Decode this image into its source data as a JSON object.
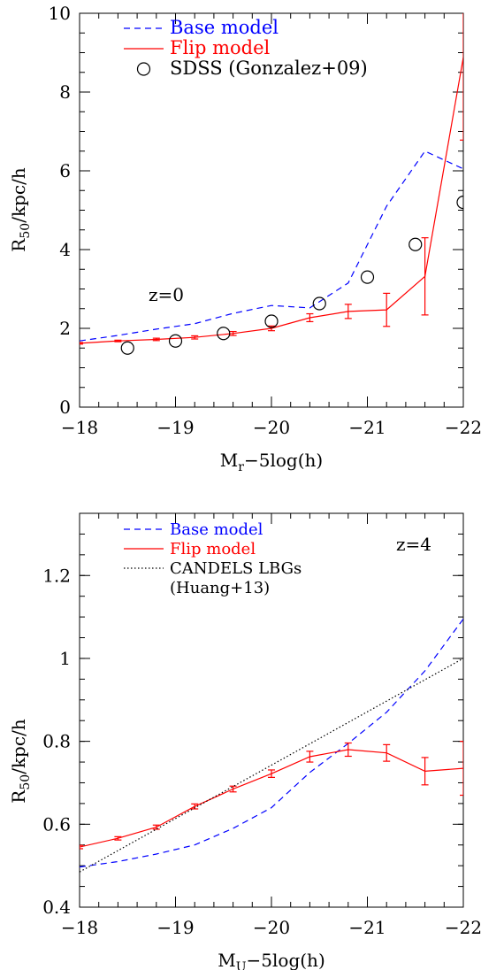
{
  "chart_data": [
    {
      "type": "line",
      "xlabel": "M",
      "xlabel_sub": "r",
      "xlabel_rest": "−5log(h)",
      "ylabel": "R",
      "ylabel_sub": "50",
      "ylabel_rest": "/kpc/h",
      "xlim": [
        -18,
        -22
      ],
      "ylim": [
        0,
        10
      ],
      "xticks": [
        -18,
        -19,
        -20,
        -21,
        -22
      ],
      "xtick_labels": [
        "−18",
        "−19",
        "−20",
        "−21",
        "−22"
      ],
      "yticks": [
        0,
        2,
        4,
        6,
        8,
        10
      ],
      "ytick_labels": [
        "0",
        "2",
        "4",
        "6",
        "8",
        "10"
      ],
      "annotation": "z=0",
      "legend_position": "top-left",
      "series": [
        {
          "name": "Base model",
          "style": "dashed",
          "color": "#0000ff",
          "x": [
            -18,
            -18.4,
            -18.8,
            -19.2,
            -19.6,
            -20,
            -20.4,
            -20.8,
            -21.2,
            -21.6,
            -22
          ],
          "y": [
            1.68,
            1.82,
            1.98,
            2.12,
            2.38,
            2.58,
            2.52,
            3.15,
            5.1,
            6.5,
            6.05
          ]
        },
        {
          "name": "Flip model",
          "style": "solid",
          "color": "#ff0000",
          "x": [
            -18,
            -18.4,
            -18.8,
            -19.2,
            -19.6,
            -20,
            -20.4,
            -20.8,
            -21.2,
            -21.6,
            -22
          ],
          "y": [
            1.62,
            1.68,
            1.72,
            1.77,
            1.87,
            2.0,
            2.27,
            2.43,
            2.47,
            3.32,
            8.88
          ],
          "err": [
            0.02,
            0.02,
            0.03,
            0.04,
            0.05,
            0.06,
            0.1,
            0.18,
            0.42,
            0.98,
            2.1
          ]
        },
        {
          "name": "SDSS (Gonzalez+09)",
          "style": "markers",
          "color": "#000000",
          "x": [
            -18.5,
            -19,
            -19.5,
            -20,
            -20.5,
            -21,
            -21.5,
            -22
          ],
          "y": [
            1.5,
            1.68,
            1.87,
            2.18,
            2.63,
            3.3,
            4.13,
            5.2
          ]
        }
      ]
    },
    {
      "type": "line",
      "xlabel": "M",
      "xlabel_sub": "U",
      "xlabel_rest": "−5log(h)",
      "ylabel": "R",
      "ylabel_sub": "50",
      "ylabel_rest": "/kpc/h",
      "xlim": [
        -18,
        -22
      ],
      "ylim": [
        0.4,
        1.35
      ],
      "xticks": [
        -18,
        -19,
        -20,
        -21,
        -22
      ],
      "xtick_labels": [
        "−18",
        "−19",
        "−20",
        "−21",
        "−22"
      ],
      "yticks": [
        0.4,
        0.6,
        0.8,
        1,
        1.2
      ],
      "ytick_labels": [
        "0.4",
        "0.6",
        "0.8",
        "1",
        "1.2"
      ],
      "annotation": "z=4",
      "legend_position": "top-left",
      "series": [
        {
          "name": "Base model",
          "style": "dashed",
          "color": "#0000ff",
          "x": [
            -18,
            -18.4,
            -18.8,
            -19.2,
            -19.6,
            -20,
            -20.4,
            -20.8,
            -21.2,
            -21.6,
            -22
          ],
          "y": [
            0.497,
            0.51,
            0.528,
            0.55,
            0.59,
            0.64,
            0.725,
            0.795,
            0.87,
            0.97,
            1.095
          ]
        },
        {
          "name": "Flip model",
          "style": "solid",
          "color": "#ff0000",
          "x": [
            -18,
            -18.4,
            -18.8,
            -19.2,
            -19.6,
            -20,
            -20.4,
            -20.8,
            -21.2,
            -21.6,
            -22
          ],
          "y": [
            0.545,
            0.566,
            0.593,
            0.643,
            0.685,
            0.722,
            0.763,
            0.78,
            0.772,
            0.728,
            0.735
          ],
          "err": [
            0.004,
            0.004,
            0.005,
            0.006,
            0.007,
            0.009,
            0.013,
            0.016,
            0.02,
            0.033,
            0.065
          ]
        },
        {
          "name": "CANDELS LBGs",
          "name_line2": "(Huang+13)",
          "style": "dotted",
          "color": "#000000",
          "x": [
            -18,
            -22
          ],
          "y": [
            0.485,
            1.0
          ]
        }
      ]
    }
  ]
}
